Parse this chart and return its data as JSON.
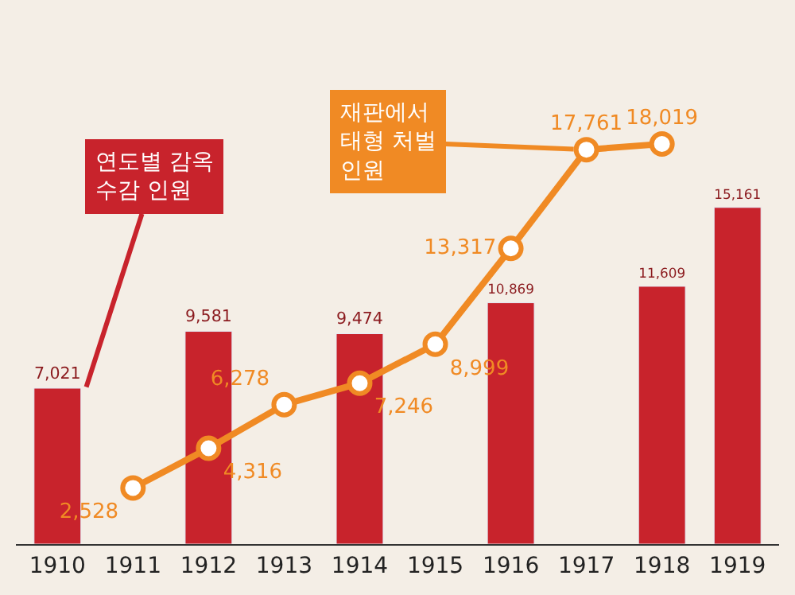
{
  "chart_data": {
    "type": "bar",
    "categories": [
      "1910",
      "1911",
      "1912",
      "1913",
      "1914",
      "1915",
      "1916",
      "1917",
      "1918",
      "1919"
    ],
    "series": [
      {
        "name": "연도별 감옥\n수감 인원",
        "color": "#c8232c",
        "values": [
          7021,
          null,
          9581,
          null,
          9474,
          null,
          10869,
          null,
          11609,
          15161
        ],
        "value_labels": [
          "7,021",
          null,
          "9,581",
          null,
          "9,474",
          null,
          "10,869",
          null,
          "11,609",
          "15,161"
        ]
      },
      {
        "name": "재판에서\n태형 처벌\n인원",
        "type": "line",
        "color": "#f08a24",
        "marker": "circle",
        "values": [
          null,
          2528,
          4316,
          6278,
          7246,
          8999,
          13317,
          17761,
          18019,
          null
        ],
        "value_labels": [
          null,
          "2,528",
          "4,316",
          "6,278",
          "7,246",
          "8,999",
          "13,317",
          "17,761",
          "18,019",
          null
        ]
      }
    ],
    "data_labels": true,
    "grid": false
  }
}
